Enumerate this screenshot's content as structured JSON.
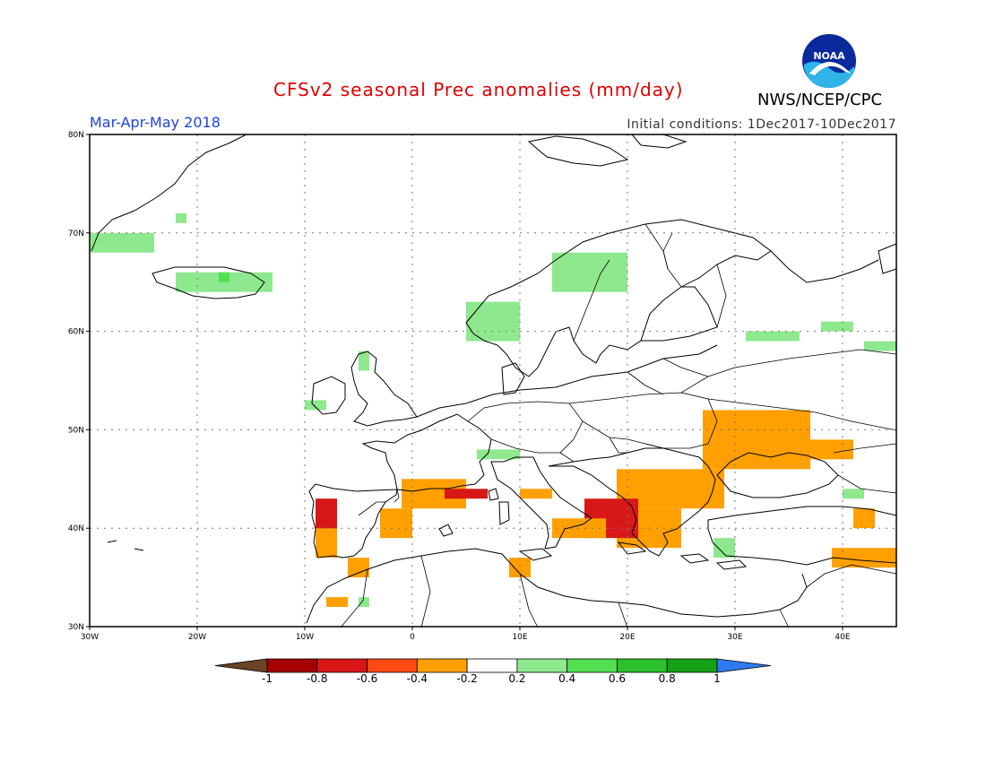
{
  "title": "CFSv2 seasonal Prec anomalies (mm/day)",
  "season": "Mar-Apr-May 2018",
  "initial_conditions": "Initial conditions: 1Dec2017-10Dec2017",
  "organization": "NWS/NCEP/CPC",
  "logo_text": "NOAA",
  "map": {
    "lon_range": [
      -30,
      45
    ],
    "lat_range": [
      30,
      80
    ],
    "lat_ticks": [
      {
        "value": 80,
        "label": "80N"
      },
      {
        "value": 70,
        "label": "70N"
      },
      {
        "value": 60,
        "label": "60N"
      },
      {
        "value": 50,
        "label": "50N"
      },
      {
        "value": 40,
        "label": "40N"
      },
      {
        "value": 30,
        "label": "30N"
      }
    ],
    "lon_ticks": [
      {
        "value": -30,
        "label": "30W"
      },
      {
        "value": -20,
        "label": "20W"
      },
      {
        "value": -10,
        "label": "10W"
      },
      {
        "value": 0,
        "label": "0"
      },
      {
        "value": 10,
        "label": "10E"
      },
      {
        "value": 20,
        "label": "20E"
      },
      {
        "value": 30,
        "label": "30E"
      },
      {
        "value": 40,
        "label": "40E"
      }
    ],
    "grid": "dotted"
  },
  "colorbar": {
    "labels": [
      "-1",
      "-0.8",
      "-0.6",
      "-0.4",
      "-0.2",
      "0.2",
      "0.4",
      "0.6",
      "0.8",
      "1"
    ],
    "colors": [
      "#6b4226",
      "#a50000",
      "#d81818",
      "#ff4a14",
      "#ffa000",
      "#ffffff",
      "#8ee88e",
      "#52e052",
      "#2cc02c",
      "#16a016",
      "#2e7cf0"
    ]
  },
  "anomaly_regions": [
    {
      "name": "greenland-east",
      "color": "#8ee88e",
      "lon": [
        -30,
        -24
      ],
      "lat": [
        68,
        70
      ]
    },
    {
      "name": "greenland-east-2",
      "color": "#8ee88e",
      "lon": [
        -22,
        -21
      ],
      "lat": [
        71,
        72
      ]
    },
    {
      "name": "iceland",
      "color": "#8ee88e",
      "lon": [
        -22,
        -13
      ],
      "lat": [
        64,
        66
      ]
    },
    {
      "name": "iceland-core",
      "color": "#52e052",
      "lon": [
        -18,
        -17
      ],
      "lat": [
        65,
        66
      ]
    },
    {
      "name": "norway-north",
      "color": "#8ee88e",
      "lon": [
        13,
        20
      ],
      "lat": [
        64,
        68
      ]
    },
    {
      "name": "norway-west",
      "color": "#8ee88e",
      "lon": [
        5,
        10
      ],
      "lat": [
        59,
        63
      ]
    },
    {
      "name": "scotland",
      "color": "#8ee88e",
      "lon": [
        -5,
        -4
      ],
      "lat": [
        56,
        58
      ]
    },
    {
      "name": "ireland",
      "color": "#8ee88e",
      "lon": [
        -10,
        -8
      ],
      "lat": [
        52,
        53
      ]
    },
    {
      "name": "alps",
      "color": "#8ee88e",
      "lon": [
        6,
        10
      ],
      "lat": [
        47,
        48
      ]
    },
    {
      "name": "russia-north-1",
      "color": "#8ee88e",
      "lon": [
        31,
        36
      ],
      "lat": [
        59,
        60
      ]
    },
    {
      "name": "russia-north-2",
      "color": "#8ee88e",
      "lon": [
        38,
        41
      ],
      "lat": [
        60,
        61
      ]
    },
    {
      "name": "russia-north-3",
      "color": "#8ee88e",
      "lon": [
        42,
        45
      ],
      "lat": [
        58,
        59
      ]
    },
    {
      "name": "turkey-west",
      "color": "#8ee88e",
      "lon": [
        28,
        30
      ],
      "lat": [
        37,
        39
      ]
    },
    {
      "name": "caucasus",
      "color": "#8ee88e",
      "lon": [
        40,
        42
      ],
      "lat": [
        43,
        44
      ]
    },
    {
      "name": "morocco",
      "color": "#8ee88e",
      "lon": [
        -5,
        -4
      ],
      "lat": [
        32,
        33
      ]
    },
    {
      "name": "ukraine",
      "color": "#ffa000",
      "lon": [
        27,
        37
      ],
      "lat": [
        46,
        52
      ]
    },
    {
      "name": "ukraine-east",
      "color": "#ffa000",
      "lon": [
        37,
        41
      ],
      "lat": [
        47,
        49
      ]
    },
    {
      "name": "france-south",
      "color": "#ffa000",
      "lon": [
        -1,
        5
      ],
      "lat": [
        42,
        45
      ]
    },
    {
      "name": "spain-north",
      "color": "#ffa000",
      "lon": [
        -3,
        0
      ],
      "lat": [
        39,
        42
      ]
    },
    {
      "name": "portugal",
      "color": "#ffa000",
      "lon": [
        -9,
        -7
      ],
      "lat": [
        37,
        43
      ]
    },
    {
      "name": "portugal-core",
      "color": "#d81818",
      "lon": [
        -9,
        -7
      ],
      "lat": [
        40,
        43
      ]
    },
    {
      "name": "pyrenees",
      "color": "#d81818",
      "lon": [
        3,
        7
      ],
      "lat": [
        43,
        44
      ]
    },
    {
      "name": "balkans",
      "color": "#ffa000",
      "lon": [
        19,
        29
      ],
      "lat": [
        42,
        46
      ]
    },
    {
      "name": "greece",
      "color": "#ffa000",
      "lon": [
        19,
        25
      ],
      "lat": [
        38,
        42
      ]
    },
    {
      "name": "adriatic-core",
      "color": "#d81818",
      "lon": [
        16,
        21
      ],
      "lat": [
        39,
        43
      ]
    },
    {
      "name": "italy-south",
      "color": "#ffa000",
      "lon": [
        13,
        18
      ],
      "lat": [
        39,
        41
      ]
    },
    {
      "name": "italy-north",
      "color": "#ffa000",
      "lon": [
        10,
        13
      ],
      "lat": [
        43,
        44
      ]
    },
    {
      "name": "sardinia",
      "color": "#ffa000",
      "lon": [
        9,
        11
      ],
      "lat": [
        35,
        37
      ]
    },
    {
      "name": "spain-south",
      "color": "#ffa000",
      "lon": [
        -6,
        -4
      ],
      "lat": [
        35,
        37
      ]
    },
    {
      "name": "morocco-orange",
      "color": "#ffa000",
      "lon": [
        -8,
        -6
      ],
      "lat": [
        32,
        33
      ]
    },
    {
      "name": "turkey-east",
      "color": "#ffa000",
      "lon": [
        39,
        45
      ],
      "lat": [
        36,
        38
      ]
    },
    {
      "name": "black-sea-east",
      "color": "#ffa000",
      "lon": [
        41,
        43
      ],
      "lat": [
        40,
        42
      ]
    }
  ]
}
